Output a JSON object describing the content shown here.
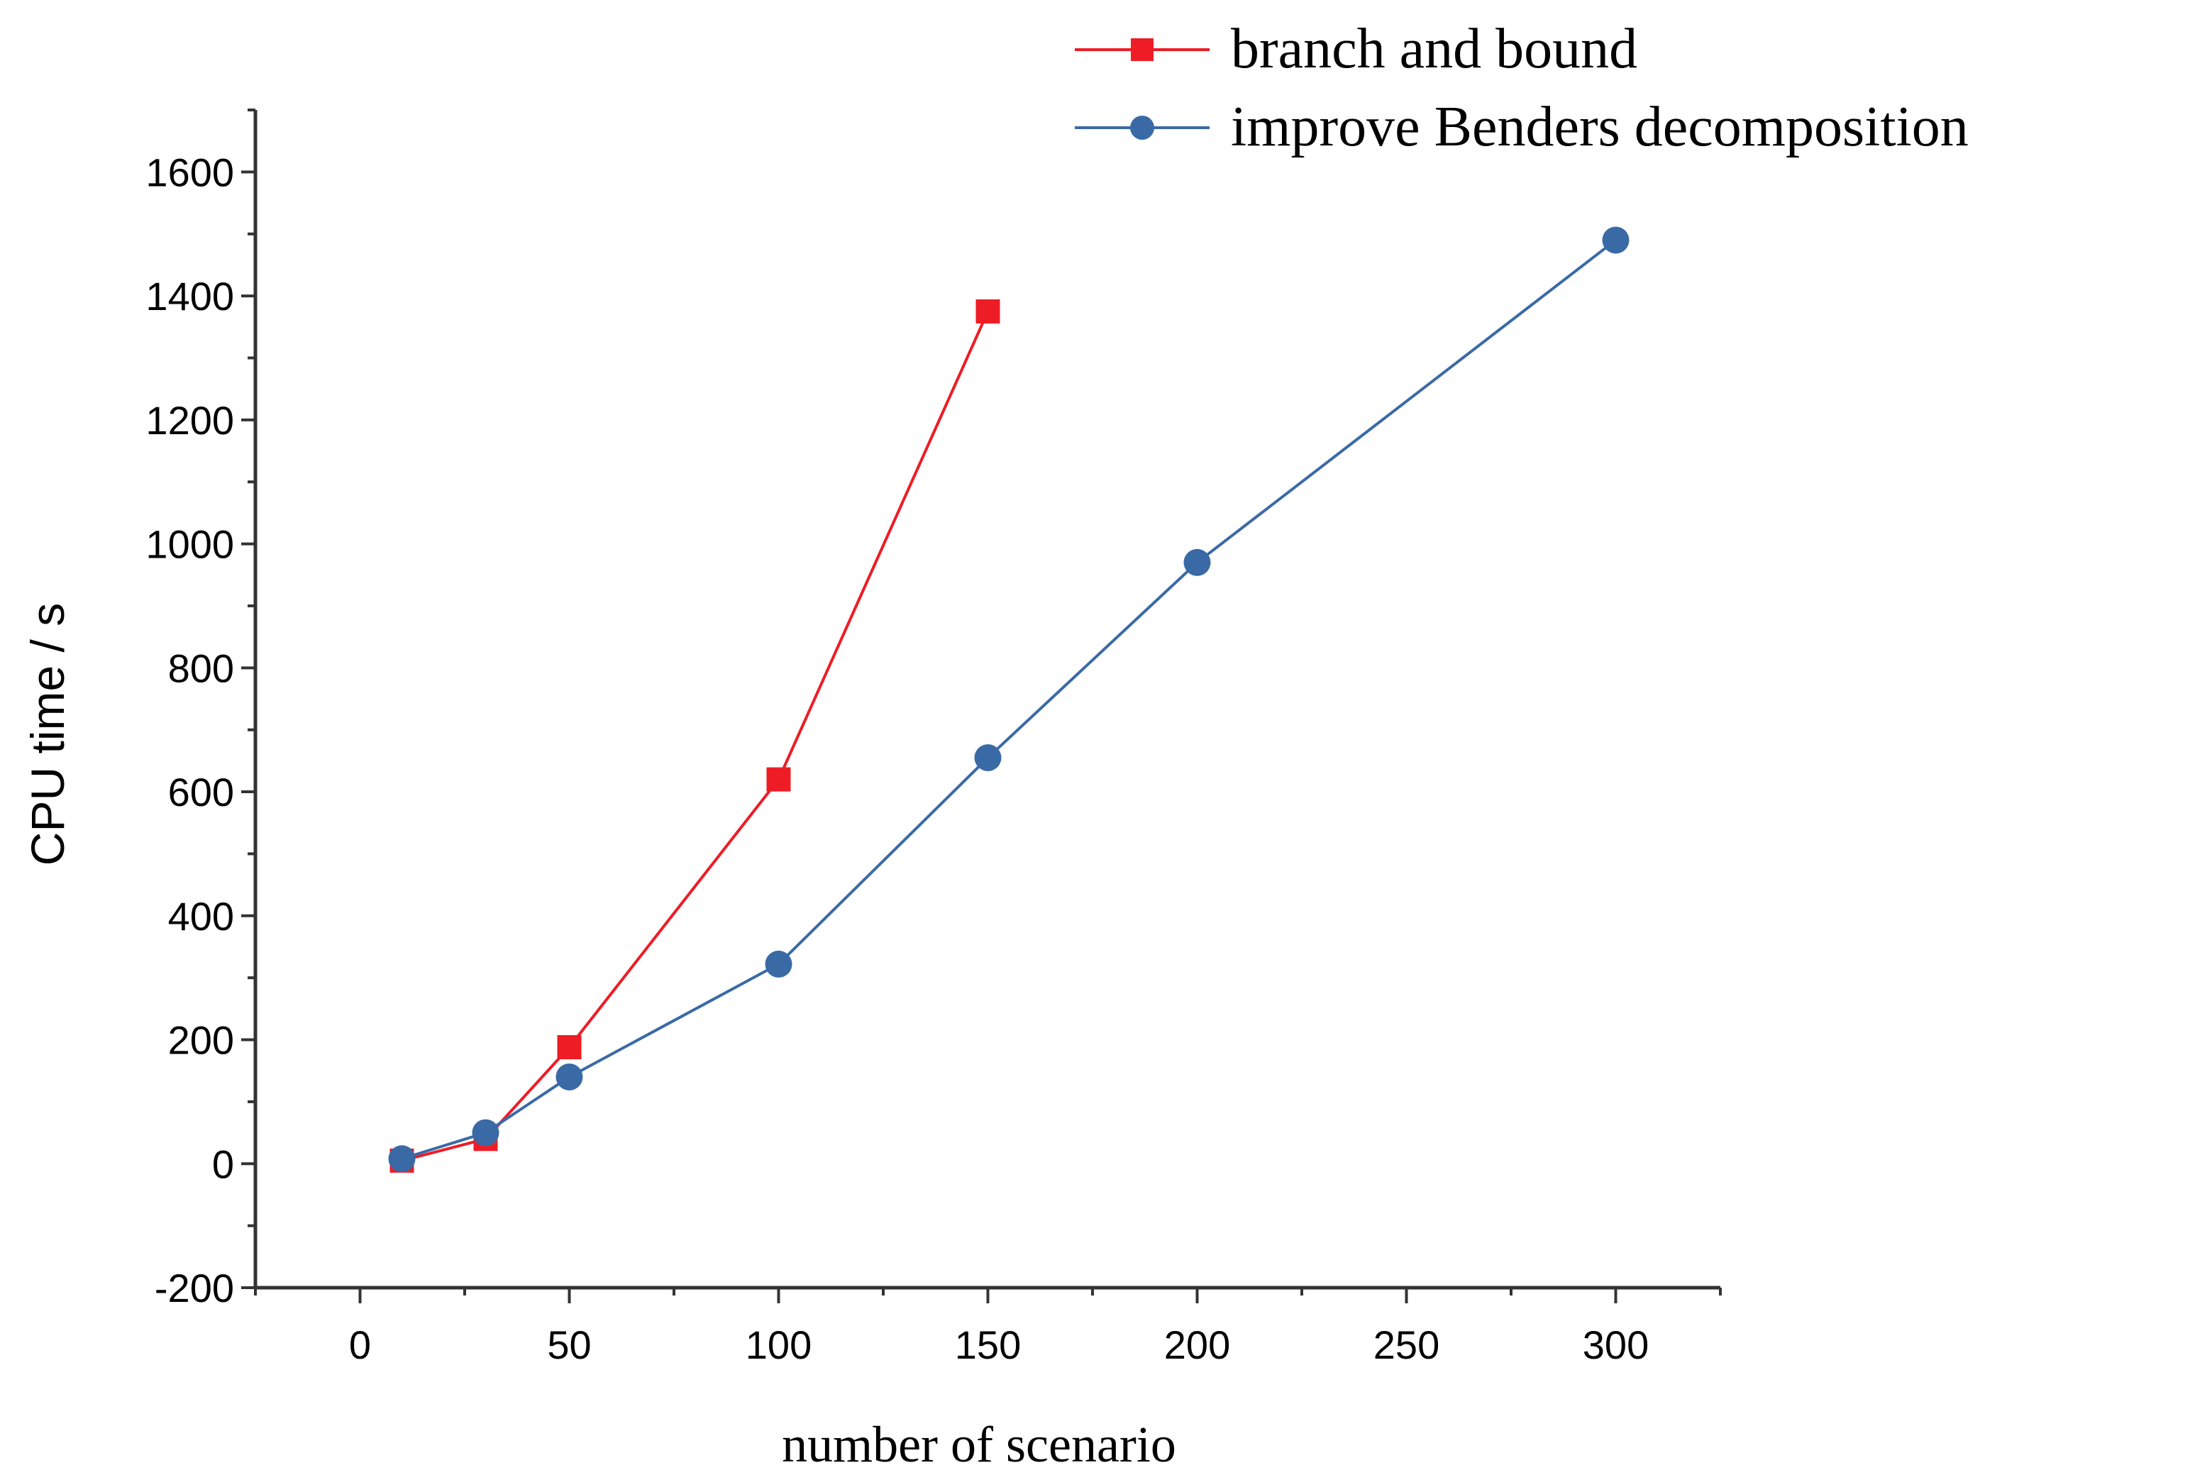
{
  "chart_data": {
    "type": "line",
    "title": "",
    "xlabel": "number of scenario",
    "ylabel": "CPU time / s",
    "xlim": [
      -25,
      325
    ],
    "ylim": [
      -200,
      1700
    ],
    "xticks": [
      0,
      50,
      100,
      150,
      200,
      250,
      300
    ],
    "yticks": [
      -200,
      0,
      200,
      400,
      600,
      800,
      1000,
      1200,
      1400,
      1600
    ],
    "grid": false,
    "legend_position": "top-right",
    "series": [
      {
        "name": "branch and bound",
        "color": "#ee1c25",
        "marker": "square",
        "x": [
          10,
          30,
          50,
          100,
          150
        ],
        "y": [
          5,
          40,
          188,
          620,
          1375
        ]
      },
      {
        "name": "improve Benders decomposition",
        "color": "#3a6aa6",
        "marker": "circle",
        "x": [
          10,
          30,
          50,
          100,
          150,
          200,
          300
        ],
        "y": [
          8,
          50,
          140,
          322,
          655,
          970,
          1490
        ]
      }
    ]
  }
}
